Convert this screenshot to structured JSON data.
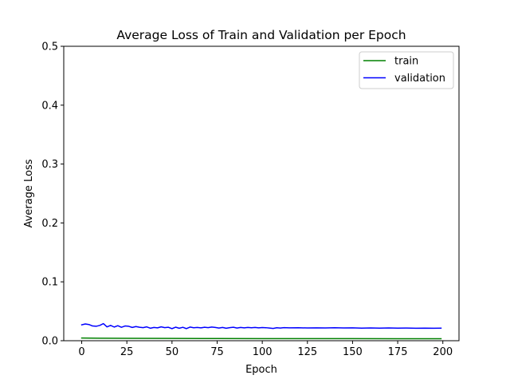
{
  "chart_data": {
    "type": "line",
    "title": "Average Loss of Train and Validation per Epoch",
    "xlabel": "Epoch",
    "ylabel": "Average Loss",
    "xlim": [
      -9.95,
      208.95
    ],
    "ylim": [
      0,
      0.5
    ],
    "xticks": [
      0,
      25,
      50,
      75,
      100,
      125,
      150,
      175,
      200
    ],
    "yticks": [
      0.0,
      0.1,
      0.2,
      0.3,
      0.4,
      0.5
    ],
    "xtick_labels": [
      "0",
      "25",
      "50",
      "75",
      "100",
      "125",
      "150",
      "175",
      "200"
    ],
    "ytick_labels": [
      "0.0",
      "0.1",
      "0.2",
      "0.3",
      "0.4",
      "0.5"
    ],
    "grid": false,
    "legend_position": "top-right",
    "series": [
      {
        "name": "train",
        "color": "#008000",
        "points": [
          [
            0,
            0.0045
          ],
          [
            10,
            0.0043
          ],
          [
            25,
            0.0041
          ],
          [
            50,
            0.0039
          ],
          [
            75,
            0.0037
          ],
          [
            100,
            0.0036
          ],
          [
            125,
            0.0035
          ],
          [
            150,
            0.0035
          ],
          [
            175,
            0.0034
          ],
          [
            199,
            0.0034
          ]
        ]
      },
      {
        "name": "validation",
        "color": "#0000ff",
        "points": [
          [
            0,
            0.027
          ],
          [
            2,
            0.0285
          ],
          [
            4,
            0.0275
          ],
          [
            6,
            0.025
          ],
          [
            8,
            0.0245
          ],
          [
            10,
            0.026
          ],
          [
            12,
            0.029
          ],
          [
            14,
            0.0235
          ],
          [
            16,
            0.026
          ],
          [
            18,
            0.0232
          ],
          [
            20,
            0.0255
          ],
          [
            22,
            0.0228
          ],
          [
            24,
            0.025
          ],
          [
            26,
            0.0245
          ],
          [
            28,
            0.0225
          ],
          [
            30,
            0.024
          ],
          [
            32,
            0.0228
          ],
          [
            34,
            0.0222
          ],
          [
            36,
            0.0235
          ],
          [
            38,
            0.0212
          ],
          [
            40,
            0.0225
          ],
          [
            42,
            0.0218
          ],
          [
            44,
            0.0235
          ],
          [
            46,
            0.0222
          ],
          [
            48,
            0.0228
          ],
          [
            50,
            0.0205
          ],
          [
            52,
            0.023
          ],
          [
            54,
            0.0212
          ],
          [
            56,
            0.0228
          ],
          [
            58,
            0.0205
          ],
          [
            60,
            0.0232
          ],
          [
            62,
            0.022
          ],
          [
            64,
            0.0225
          ],
          [
            66,
            0.0218
          ],
          [
            68,
            0.0228
          ],
          [
            70,
            0.0222
          ],
          [
            72,
            0.0232
          ],
          [
            74,
            0.0225
          ],
          [
            76,
            0.0215
          ],
          [
            78,
            0.0225
          ],
          [
            80,
            0.0212
          ],
          [
            82,
            0.0222
          ],
          [
            84,
            0.0228
          ],
          [
            86,
            0.0215
          ],
          [
            88,
            0.0225
          ],
          [
            90,
            0.0218
          ],
          [
            92,
            0.0226
          ],
          [
            94,
            0.022
          ],
          [
            96,
            0.0225
          ],
          [
            98,
            0.0218
          ],
          [
            100,
            0.0224
          ],
          [
            102,
            0.0221
          ],
          [
            104,
            0.0215
          ],
          [
            106,
            0.0208
          ],
          [
            108,
            0.022
          ],
          [
            110,
            0.0215
          ],
          [
            112,
            0.0222
          ],
          [
            115,
            0.0218
          ],
          [
            120,
            0.022
          ],
          [
            125,
            0.0216
          ],
          [
            130,
            0.0219
          ],
          [
            135,
            0.0217
          ],
          [
            140,
            0.0221
          ],
          [
            145,
            0.0216
          ],
          [
            150,
            0.0218
          ],
          [
            155,
            0.0214
          ],
          [
            160,
            0.0217
          ],
          [
            165,
            0.0213
          ],
          [
            170,
            0.0216
          ],
          [
            175,
            0.0213
          ],
          [
            180,
            0.0215
          ],
          [
            185,
            0.0212
          ],
          [
            190,
            0.0214
          ],
          [
            195,
            0.0212
          ],
          [
            199,
            0.0213
          ]
        ]
      }
    ]
  }
}
